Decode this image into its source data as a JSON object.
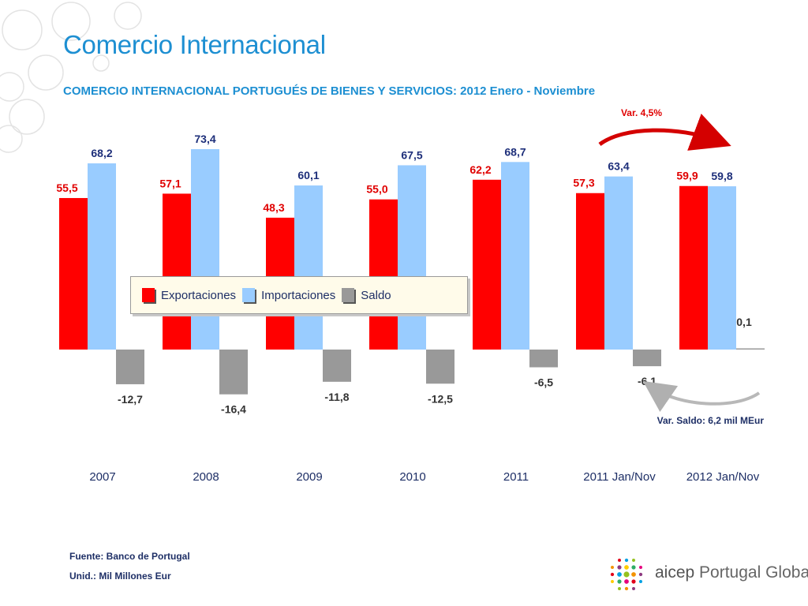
{
  "header": {
    "title": "Comercio Internacional",
    "subtitle": "COMERCIO INTERNACIONAL PORTUGUÉS DE BIENES Y SERVICIOS: 2012 Enero - Noviembre"
  },
  "colors": {
    "exportaciones": "#ff0000",
    "importaciones": "#99ccff",
    "saldo": "#999999",
    "export_label": "#e00000",
    "import_label": "#1e2f7a",
    "saldo_label": "#333333",
    "title": "#1d8fd2"
  },
  "chart_data": {
    "type": "bar",
    "categories": [
      "2007",
      "2008",
      "2009",
      "2010",
      "2011",
      "2011 Jan/Nov",
      "2012 Jan/Nov"
    ],
    "series": [
      {
        "name": "Exportaciones",
        "values": [
          55.5,
          57.1,
          48.3,
          55.0,
          62.2,
          57.3,
          59.9
        ],
        "labels": [
          "55,5",
          "57,1",
          "48,3",
          "55,0",
          "62,2",
          "57,3",
          "59,9"
        ]
      },
      {
        "name": "Importaciones",
        "values": [
          68.2,
          73.4,
          60.1,
          67.5,
          68.7,
          63.4,
          59.8
        ],
        "labels": [
          "68,2",
          "73,4",
          "60,1",
          "67,5",
          "68,7",
          "63,4",
          "59,8"
        ]
      },
      {
        "name": "Saldo",
        "values": [
          -12.7,
          -16.4,
          -11.8,
          -12.5,
          -6.5,
          -6.1,
          0.1
        ],
        "labels": [
          "-12,7",
          "-16,4",
          "-11,8",
          "-12,5",
          "-6,5",
          "-6,1",
          "0,1"
        ]
      }
    ],
    "ylim": [
      -20,
      75
    ],
    "legend_position": "center",
    "grid": false,
    "annotations": {
      "var_total": "Var. 4,5%",
      "var_saldo": "Var. Saldo: 6,2 mil MEur"
    }
  },
  "footer": {
    "source": "Fuente: Banco de Portugal",
    "unit": "Unid.: Mil Millones Eur"
  },
  "logo": {
    "brand": "aicep",
    "tagline": "Portugal Global"
  }
}
